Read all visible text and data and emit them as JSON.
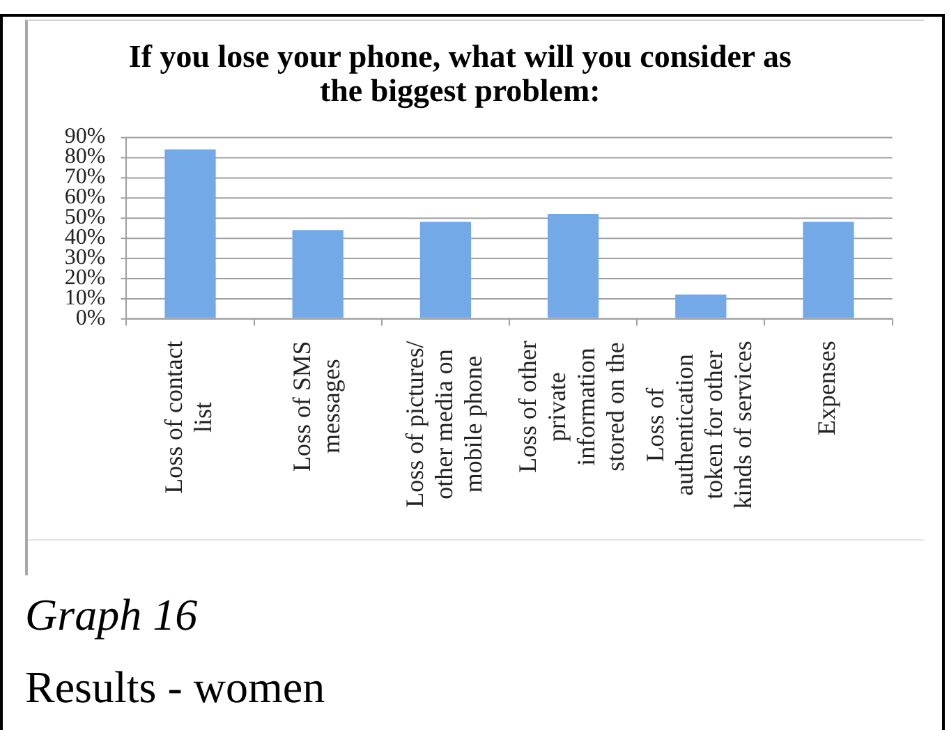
{
  "chart_data": {
    "type": "bar",
    "title": "If you lose your phone, what will you consider as the biggest problem:",
    "categories": [
      "Loss of contact list",
      "Loss of SMS messages",
      "Loss of pictures/ other media on mobile phone",
      "Loss of other private information stored on the",
      "Loss of authentication token for other kinds of services",
      "Expenses"
    ],
    "values": [
      84,
      44,
      48,
      52,
      12,
      48
    ],
    "color": "#74a9e8",
    "ylim": [
      0,
      90
    ],
    "yticks": [
      {
        "value": 0,
        "label": "0%"
      },
      {
        "value": 10,
        "label": "10%"
      },
      {
        "value": 20,
        "label": "20%"
      },
      {
        "value": 30,
        "label": "30%"
      },
      {
        "value": 40,
        "label": "40%"
      },
      {
        "value": 50,
        "label": "50%"
      },
      {
        "value": 60,
        "label": "60%"
      },
      {
        "value": 70,
        "label": "70%"
      },
      {
        "value": 80,
        "label": "80%"
      },
      {
        "value": 90,
        "label": "90%"
      }
    ],
    "grid": "y",
    "annotations": [
      "Graph 16",
      "Results - women"
    ]
  }
}
